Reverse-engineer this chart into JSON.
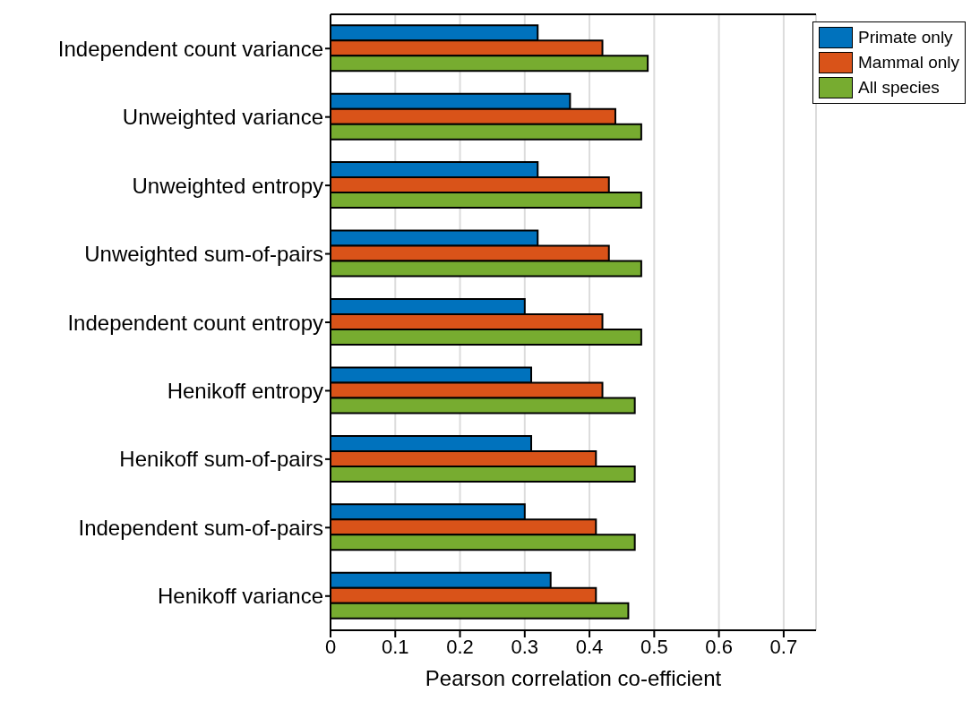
{
  "chart_data": {
    "type": "bar",
    "orientation": "horizontal",
    "categories": [
      "Independent count variance",
      "Unweighted variance",
      "Unweighted entropy",
      "Unweighted sum-of-pairs",
      "Independent count entropy",
      "Henikoff entropy",
      "Henikoff sum-of-pairs",
      "Independent sum-of-pairs",
      "Henikoff variance"
    ],
    "series": [
      {
        "name": "Primate only",
        "color": "#0072bd",
        "values": [
          0.32,
          0.37,
          0.32,
          0.32,
          0.3,
          0.31,
          0.31,
          0.3,
          0.34
        ]
      },
      {
        "name": "Mammal only",
        "color": "#d95319",
        "values": [
          0.42,
          0.44,
          0.43,
          0.43,
          0.42,
          0.42,
          0.41,
          0.41,
          0.41
        ]
      },
      {
        "name": "All species",
        "color": "#77ac30",
        "values": [
          0.49,
          0.48,
          0.48,
          0.48,
          0.48,
          0.47,
          0.47,
          0.47,
          0.46
        ]
      }
    ],
    "xlabel": "Pearson correlation co-efficient",
    "xlim": [
      0,
      0.75
    ],
    "xticks": [
      0,
      0.1,
      0.2,
      0.3,
      0.4,
      0.5,
      0.6,
      0.7
    ],
    "grid": "x",
    "legend": "top right"
  }
}
